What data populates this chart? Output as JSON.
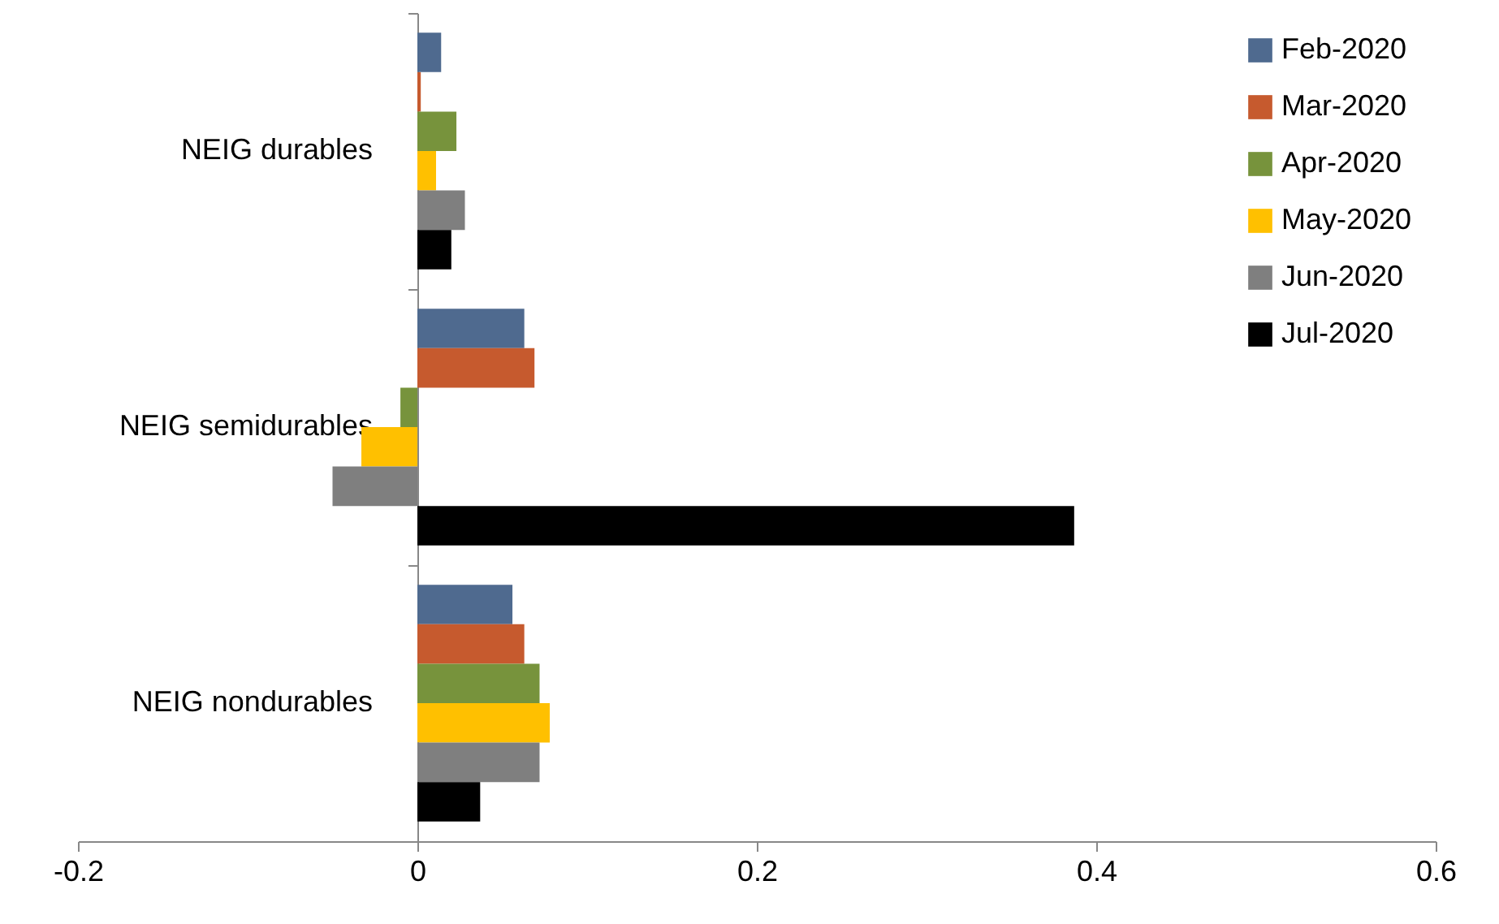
{
  "chart_data": {
    "type": "bar",
    "orientation": "horizontal",
    "categories": [
      "NEIG durables",
      "NEIG semidurables",
      "NEIG nondurables"
    ],
    "series": [
      {
        "name": "Feb-2020",
        "color": "#4f6a8f",
        "values": [
          0.014,
          0.063,
          0.056
        ]
      },
      {
        "name": "Mar-2020",
        "color": "#c65a2e",
        "values": [
          0.002,
          0.069,
          0.063
        ]
      },
      {
        "name": "Apr-2020",
        "color": "#77933c",
        "values": [
          0.023,
          -0.01,
          0.072
        ]
      },
      {
        "name": "May-2020",
        "color": "#ffc000",
        "values": [
          0.011,
          -0.033,
          0.078
        ]
      },
      {
        "name": "Jun-2020",
        "color": "#7f7f7f",
        "values": [
          0.028,
          -0.05,
          0.072
        ]
      },
      {
        "name": "Jul-2020",
        "color": "#000000",
        "values": [
          0.02,
          0.387,
          0.037
        ]
      }
    ],
    "xlim": [
      -0.2,
      0.6
    ],
    "xticks": [
      -0.2,
      0,
      0.2,
      0.4,
      0.6
    ],
    "grid": false,
    "legend": "top right"
  }
}
